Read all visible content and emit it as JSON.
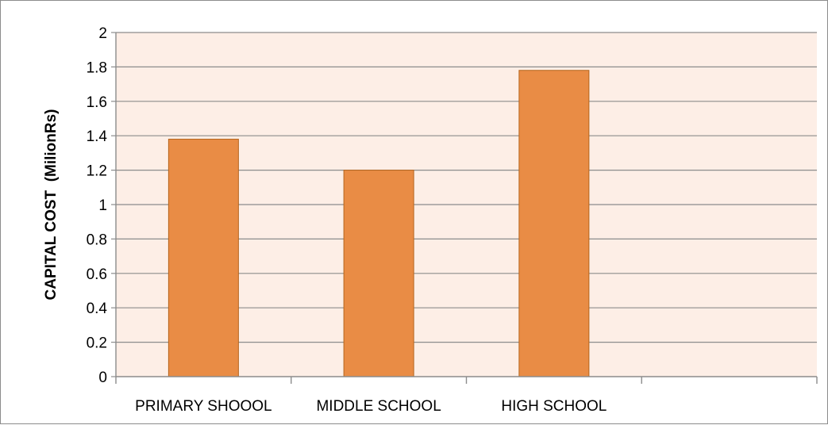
{
  "chart_data": {
    "type": "bar",
    "categories": [
      "PRIMARY SHOOOL",
      "MIDDLE SCHOOL",
      "HIGH SCHOOL",
      ""
    ],
    "values": [
      1.38,
      1.2,
      1.78,
      null
    ],
    "title": "",
    "xlabel": "",
    "ylabel": "CAPITAL COST  (MilionRs)",
    "ylim": [
      0,
      2
    ],
    "yticks": [
      "0",
      "0.2",
      "0.4",
      "0.6",
      "0.8",
      "1",
      "1.2",
      "1.4",
      "1.6",
      "1.8",
      "2"
    ],
    "grid": true,
    "legend": "none",
    "colors": {
      "bar": "#E98C45",
      "bar_border": "#B5651D",
      "plot_background": "#FDEEE6",
      "gridline": "#8c8c8c",
      "frame": "#8c8c8c"
    }
  }
}
